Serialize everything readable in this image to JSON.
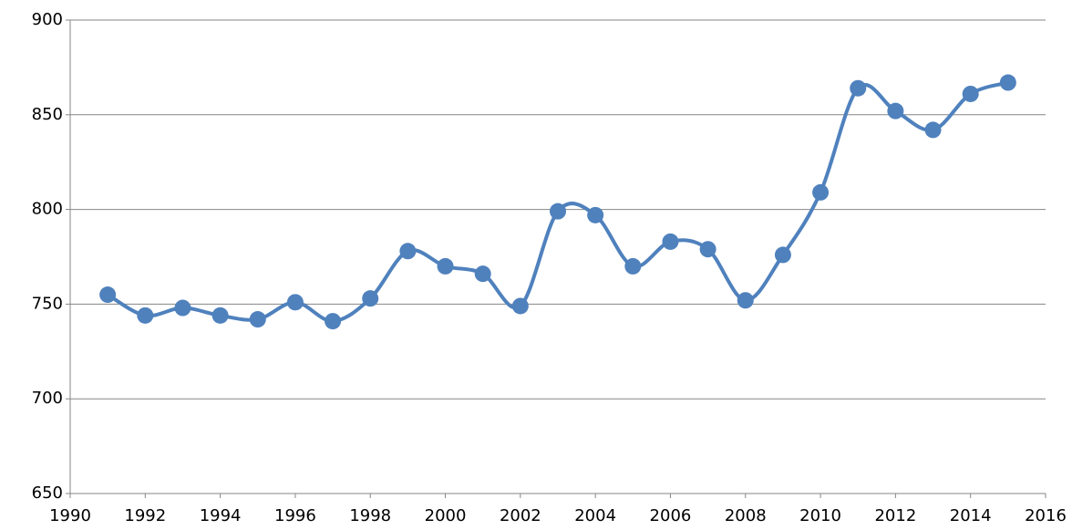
{
  "chart_data": {
    "type": "line",
    "x": [
      1991,
      1992,
      1993,
      1994,
      1995,
      1996,
      1997,
      1998,
      1999,
      2000,
      2001,
      2002,
      2003,
      2004,
      2005,
      2006,
      2007,
      2008,
      2009,
      2010,
      2011,
      2012,
      2013,
      2014,
      2015
    ],
    "values": [
      755,
      744,
      748,
      744,
      742,
      751,
      741,
      753,
      778,
      770,
      766,
      749,
      799,
      797,
      770,
      783,
      779,
      752,
      776,
      809,
      864,
      852,
      842,
      861,
      867
    ],
    "color": "#4f81bd",
    "xlim": [
      1990,
      2016
    ],
    "xticks": [
      1990,
      1992,
      1994,
      1996,
      1998,
      2000,
      2002,
      2004,
      2006,
      2008,
      2010,
      2012,
      2014,
      2016
    ],
    "ylim": [
      650,
      900
    ],
    "yticks": [
      650,
      700,
      750,
      800,
      850,
      900
    ],
    "grid": true,
    "smooth": true
  }
}
